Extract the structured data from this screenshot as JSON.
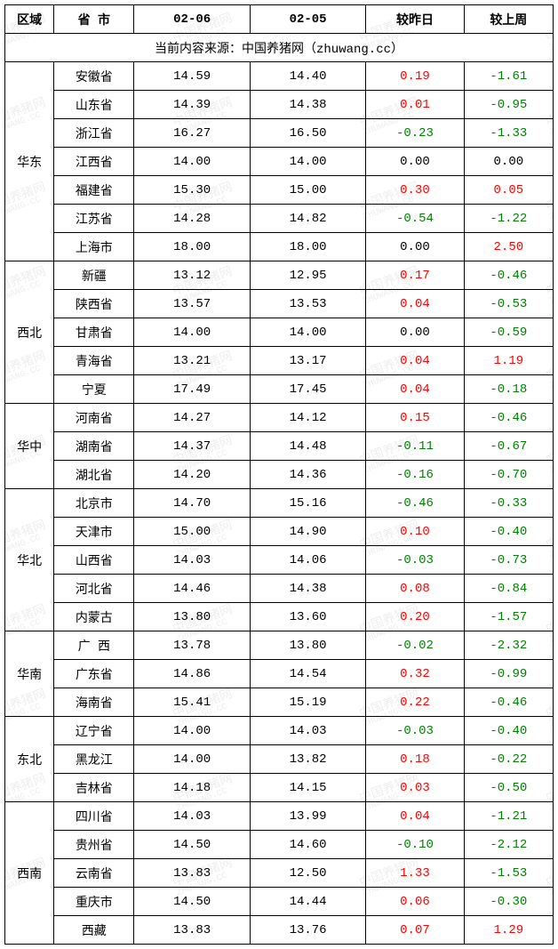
{
  "header": {
    "region": "区域",
    "province": "省 市",
    "date1": "02-06",
    "date2": "02-05",
    "vs_yesterday": "较昨日",
    "vs_lastweek": "较上周"
  },
  "source_line": "当前内容来源：中国养猪网（zhuwang.cc）",
  "colors": {
    "pos": "#ff0000",
    "neg": "#008000",
    "zero": "#000000",
    "border": "#000000",
    "watermark": "#eeeeee"
  },
  "watermark": {
    "line1": "中国养猪网",
    "line2": "ZHUWANG.CC"
  },
  "regions": [
    {
      "name": "华东",
      "rows": [
        {
          "prov": "安徽省",
          "d1": "14.59",
          "d2": "14.40",
          "dy": "0.19",
          "wk": "-1.61"
        },
        {
          "prov": "山东省",
          "d1": "14.39",
          "d2": "14.38",
          "dy": "0.01",
          "wk": "-0.95"
        },
        {
          "prov": "浙江省",
          "d1": "16.27",
          "d2": "16.50",
          "dy": "-0.23",
          "wk": "-1.33"
        },
        {
          "prov": "江西省",
          "d1": "14.00",
          "d2": "14.00",
          "dy": "0.00",
          "wk": "0.00"
        },
        {
          "prov": "福建省",
          "d1": "15.30",
          "d2": "15.00",
          "dy": "0.30",
          "wk": "0.05"
        },
        {
          "prov": "江苏省",
          "d1": "14.28",
          "d2": "14.82",
          "dy": "-0.54",
          "wk": "-1.22"
        },
        {
          "prov": "上海市",
          "d1": "18.00",
          "d2": "18.00",
          "dy": "0.00",
          "wk": "2.50"
        }
      ]
    },
    {
      "name": "西北",
      "rows": [
        {
          "prov": "新疆",
          "d1": "13.12",
          "d2": "12.95",
          "dy": "0.17",
          "wk": "-0.46"
        },
        {
          "prov": "陕西省",
          "d1": "13.57",
          "d2": "13.53",
          "dy": "0.04",
          "wk": "-0.53"
        },
        {
          "prov": "甘肃省",
          "d1": "14.00",
          "d2": "14.00",
          "dy": "0.00",
          "wk": "-0.59"
        },
        {
          "prov": "青海省",
          "d1": "13.21",
          "d2": "13.17",
          "dy": "0.04",
          "wk": "1.19"
        },
        {
          "prov": "宁夏",
          "d1": "17.49",
          "d2": "17.45",
          "dy": "0.04",
          "wk": "-0.18"
        }
      ]
    },
    {
      "name": "华中",
      "rows": [
        {
          "prov": "河南省",
          "d1": "14.27",
          "d2": "14.12",
          "dy": "0.15",
          "wk": "-0.46"
        },
        {
          "prov": "湖南省",
          "d1": "14.37",
          "d2": "14.48",
          "dy": "-0.11",
          "wk": "-0.67"
        },
        {
          "prov": "湖北省",
          "d1": "14.20",
          "d2": "14.36",
          "dy": "-0.16",
          "wk": "-0.70"
        }
      ]
    },
    {
      "name": "华北",
      "rows": [
        {
          "prov": "北京市",
          "d1": "14.70",
          "d2": "15.16",
          "dy": "-0.46",
          "wk": "-0.33"
        },
        {
          "prov": "天津市",
          "d1": "15.00",
          "d2": "14.90",
          "dy": "0.10",
          "wk": "-0.40"
        },
        {
          "prov": "山西省",
          "d1": "14.03",
          "d2": "14.06",
          "dy": "-0.03",
          "wk": "-0.73"
        },
        {
          "prov": "河北省",
          "d1": "14.46",
          "d2": "14.38",
          "dy": "0.08",
          "wk": "-0.84"
        },
        {
          "prov": "内蒙古",
          "d1": "13.80",
          "d2": "13.60",
          "dy": "0.20",
          "wk": "-1.57"
        }
      ]
    },
    {
      "name": "华南",
      "rows": [
        {
          "prov": "广 西",
          "d1": "13.78",
          "d2": "13.80",
          "dy": "-0.02",
          "wk": "-2.32"
        },
        {
          "prov": "广东省",
          "d1": "14.86",
          "d2": "14.54",
          "dy": "0.32",
          "wk": "-0.99"
        },
        {
          "prov": "海南省",
          "d1": "15.41",
          "d2": "15.19",
          "dy": "0.22",
          "wk": "-0.46"
        }
      ]
    },
    {
      "name": "东北",
      "rows": [
        {
          "prov": "辽宁省",
          "d1": "14.00",
          "d2": "14.03",
          "dy": "-0.03",
          "wk": "-0.40"
        },
        {
          "prov": "黑龙江",
          "d1": "14.00",
          "d2": "13.82",
          "dy": "0.18",
          "wk": "-0.22"
        },
        {
          "prov": "吉林省",
          "d1": "14.18",
          "d2": "14.15",
          "dy": "0.03",
          "wk": "-0.50"
        }
      ]
    },
    {
      "name": "西南",
      "rows": [
        {
          "prov": "四川省",
          "d1": "14.03",
          "d2": "13.99",
          "dy": "0.04",
          "wk": "-1.21"
        },
        {
          "prov": "贵州省",
          "d1": "14.50",
          "d2": "14.60",
          "dy": "-0.10",
          "wk": "-2.12"
        },
        {
          "prov": "云南省",
          "d1": "13.83",
          "d2": "12.50",
          "dy": "1.33",
          "wk": "-1.53"
        },
        {
          "prov": "重庆市",
          "d1": "14.50",
          "d2": "14.44",
          "dy": "0.06",
          "wk": "-0.30"
        },
        {
          "prov": "西藏",
          "d1": "13.83",
          "d2": "13.76",
          "dy": "0.07",
          "wk": "1.29"
        }
      ]
    }
  ]
}
